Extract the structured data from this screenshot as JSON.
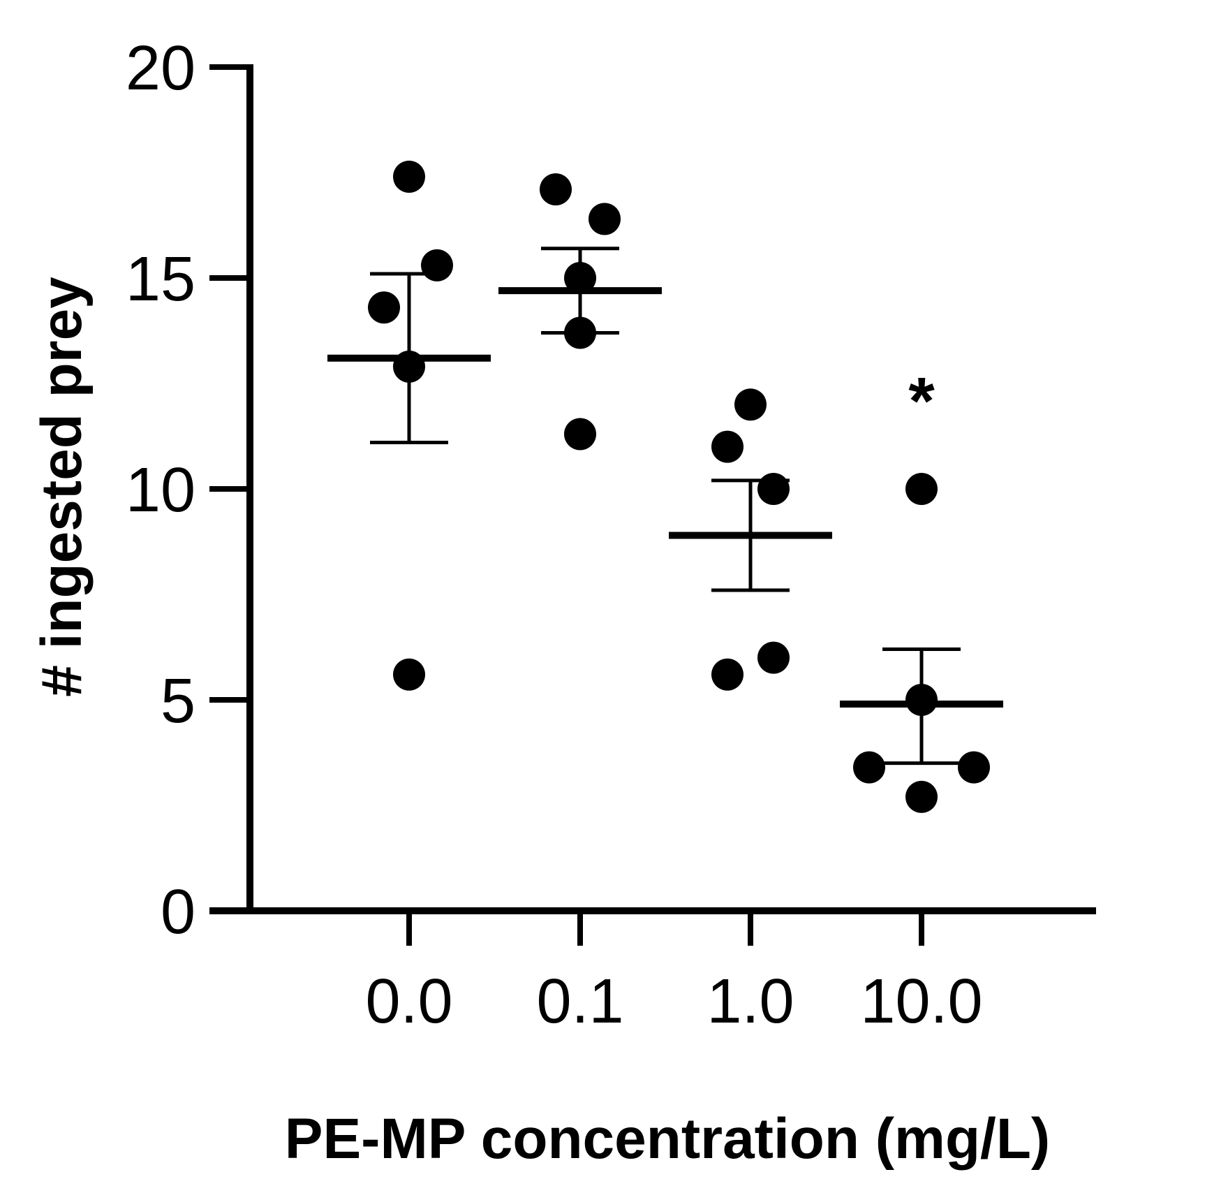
{
  "chart_data": {
    "type": "scatter",
    "title": "",
    "xlabel": "PE-MP concentration (mg/L)",
    "ylabel": "# ingested prey",
    "categories": [
      "0.0",
      "0.1",
      "1.0",
      "10.0"
    ],
    "ylim": [
      0,
      20
    ],
    "yticks": [
      0,
      5,
      10,
      15,
      20
    ],
    "grid": false,
    "groups": [
      {
        "category": "0.0",
        "points": [
          17.4,
          15.3,
          14.3,
          12.9,
          5.6
        ],
        "mean": 13.1,
        "error_upper": 15.1,
        "error_lower": 11.1
      },
      {
        "category": "0.1",
        "points": [
          17.1,
          16.4,
          15.0,
          13.7,
          11.3
        ],
        "mean": 14.7,
        "error_upper": 15.7,
        "error_lower": 13.7
      },
      {
        "category": "1.0",
        "points": [
          12.0,
          11.0,
          10.0,
          6.0,
          5.6
        ],
        "mean": 8.9,
        "error_upper": 10.2,
        "error_lower": 7.6
      },
      {
        "category": "10.0",
        "points": [
          10.0,
          5.0,
          3.4,
          3.4,
          2.7
        ],
        "mean": 4.9,
        "error_upper": 6.2,
        "error_lower": 3.5
      }
    ],
    "annotations": [
      {
        "category": "10.0",
        "text": "*",
        "y": 12.2
      }
    ]
  },
  "colors": {
    "foreground": "#000000",
    "background": "#ffffff"
  }
}
